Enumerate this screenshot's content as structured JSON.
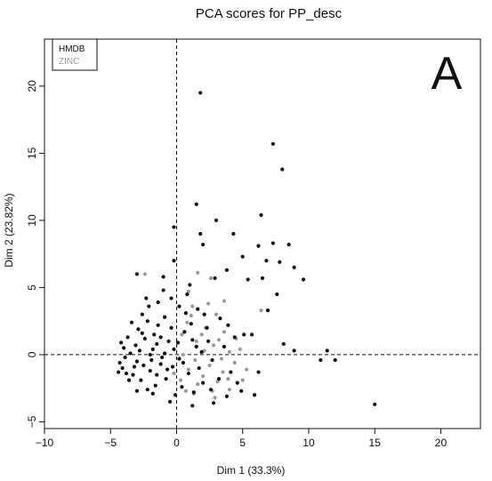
{
  "chart_data": {
    "type": "scatter",
    "title": "PCA scores for PP_desc",
    "xlabel": "Dim 1 (33.3%)",
    "ylabel": "Dim 2 (23.82%)",
    "panel_label": "A",
    "xlim": [
      -10,
      23
    ],
    "ylim": [
      -5.5,
      23.5
    ],
    "xticks": [
      -10,
      -5,
      0,
      5,
      10,
      15,
      20
    ],
    "yticks": [
      -5,
      0,
      5,
      10,
      15,
      20
    ],
    "xtick_labels": [
      "−10",
      "−5",
      "0",
      "5",
      "10",
      "15",
      "20"
    ],
    "ytick_labels": [
      "−5",
      "0",
      "5",
      "10",
      "15",
      "20"
    ],
    "reference_lines": {
      "x": 0,
      "y": 0,
      "style": "dashed"
    },
    "legend_position": "top-left",
    "colors": {
      "HMDB": "#111111",
      "ZINC": "#9a9a9a"
    },
    "series": [
      {
        "name": "HMDB",
        "color": "#111111",
        "points": [
          [
            1.8,
            19.5
          ],
          [
            7.3,
            15.7
          ],
          [
            8.0,
            13.8
          ],
          [
            1.5,
            11.2
          ],
          [
            3.0,
            10.0
          ],
          [
            6.4,
            10.4
          ],
          [
            -0.2,
            9.5
          ],
          [
            1.8,
            9.0
          ],
          [
            4.3,
            9.0
          ],
          [
            2.0,
            8.2
          ],
          [
            6.2,
            8.1
          ],
          [
            7.3,
            8.3
          ],
          [
            8.5,
            8.2
          ],
          [
            6.8,
            7.0
          ],
          [
            7.8,
            6.9
          ],
          [
            -3.0,
            6.0
          ],
          [
            8.9,
            6.5
          ],
          [
            -0.2,
            7.0
          ],
          [
            3.8,
            6.3
          ],
          [
            9.6,
            5.6
          ],
          [
            5.4,
            5.6
          ],
          [
            6.5,
            5.7
          ],
          [
            5.0,
            7.3
          ],
          [
            7.6,
            4.5
          ],
          [
            -1.0,
            5.8
          ],
          [
            2.9,
            5.7
          ],
          [
            1.0,
            5.2
          ],
          [
            6.9,
            3.3
          ],
          [
            5.1,
            1.5
          ],
          [
            5.7,
            1.5
          ],
          [
            8.1,
            0.8
          ],
          [
            8.9,
            0.3
          ],
          [
            11.4,
            0.3
          ],
          [
            10.9,
            -0.4
          ],
          [
            12.0,
            -0.4
          ],
          [
            15.0,
            -3.7
          ],
          [
            6.2,
            -1.3
          ],
          [
            2.1,
            3.0
          ],
          [
            3.3,
            2.7
          ],
          [
            -2.1,
            3.6
          ],
          [
            -1.4,
            3.9
          ],
          [
            0.8,
            4.5
          ],
          [
            -0.4,
            4.2
          ],
          [
            1.2,
            -3.8
          ],
          [
            -0.5,
            -3.5
          ],
          [
            5.9,
            -3.0
          ],
          [
            4.9,
            -2.7
          ],
          [
            2.8,
            -3.6
          ],
          [
            -4.0,
            0.5
          ],
          [
            -3.5,
            0.1
          ],
          [
            -3.0,
            -0.5
          ],
          [
            -2.4,
            1.2
          ],
          [
            -1.8,
            0.4
          ],
          [
            -1.2,
            -0.7
          ],
          [
            -0.6,
            1.0
          ],
          [
            0.2,
            -0.3
          ],
          [
            -4.1,
            -1.0
          ],
          [
            -3.3,
            -1.5
          ],
          [
            -2.7,
            -1.9
          ],
          [
            -2.0,
            -1.2
          ],
          [
            -1.4,
            2.2
          ],
          [
            -0.8,
            -1.8
          ],
          [
            0.6,
            1.7
          ],
          [
            -3.7,
            1.3
          ],
          [
            -2.9,
            1.9
          ],
          [
            -2.2,
            2.5
          ],
          [
            -1.6,
            -2.3
          ],
          [
            -0.9,
            0.1
          ],
          [
            0.9,
            -1.4
          ],
          [
            1.5,
            0.6
          ],
          [
            2.0,
            -2.1
          ],
          [
            -3.9,
            -0.2
          ],
          [
            -3.1,
            0.7
          ],
          [
            -2.5,
            -0.8
          ],
          [
            -1.7,
            1.5
          ],
          [
            -1.1,
            -0.2
          ],
          [
            -0.4,
            2.0
          ],
          [
            0.4,
            -2.4
          ],
          [
            1.1,
            2.3
          ],
          [
            2.4,
            1.0
          ],
          [
            -4.3,
            -0.6
          ],
          [
            -3.6,
            -1.9
          ],
          [
            -2.8,
            0.3
          ],
          [
            -2.2,
            -2.6
          ],
          [
            -1.5,
            0.8
          ],
          [
            -0.7,
            -1.1
          ],
          [
            0.1,
            0.9
          ],
          [
            1.7,
            -1.0
          ],
          [
            2.7,
            -0.4
          ],
          [
            3.2,
            -1.8
          ],
          [
            -3.4,
            2.4
          ],
          [
            -2.6,
            3.0
          ],
          [
            -1.9,
            -0.4
          ],
          [
            -1.2,
            1.3
          ],
          [
            -0.3,
            -0.9
          ],
          [
            0.7,
            3.1
          ],
          [
            1.3,
            -2.8
          ],
          [
            2.3,
            2.0
          ],
          [
            -4.2,
            0.9
          ],
          [
            -3.8,
            -1.4
          ],
          [
            -3.2,
            -0.9
          ],
          [
            -2.6,
            1.6
          ],
          [
            -2.0,
            0.0
          ],
          [
            -1.5,
            -1.5
          ],
          [
            -0.9,
            2.8
          ],
          [
            -0.2,
            0.4
          ],
          [
            0.5,
            -0.6
          ],
          [
            1.2,
            1.1
          ],
          [
            1.9,
            0.2
          ],
          [
            2.6,
            -2.6
          ],
          [
            3.6,
            0.6
          ],
          [
            4.1,
            -1.3
          ],
          [
            4.6,
            -2.1
          ],
          [
            -1.0,
            4.8
          ],
          [
            -2.3,
            4.2
          ],
          [
            0.2,
            3.6
          ],
          [
            1.6,
            3.4
          ],
          [
            3.9,
            2.2
          ],
          [
            -3.0,
            -2.7
          ],
          [
            -4.4,
            -1.3
          ],
          [
            -1.8,
            -2.9
          ],
          [
            -0.1,
            -3.0
          ],
          [
            3.8,
            -3.1
          ],
          [
            4.4,
            1.3
          ]
        ]
      },
      {
        "name": "ZINC",
        "color": "#9a9a9a",
        "points": [
          [
            -2.4,
            6.0
          ],
          [
            1.6,
            6.1
          ],
          [
            2.6,
            5.7
          ],
          [
            0.9,
            4.7
          ],
          [
            3.6,
            4.0
          ],
          [
            6.4,
            3.3
          ],
          [
            1.2,
            3.6
          ],
          [
            3.0,
            3.0
          ],
          [
            0.8,
            2.4
          ],
          [
            2.2,
            2.0
          ],
          [
            3.6,
            1.7
          ],
          [
            4.5,
            1.2
          ],
          [
            0.4,
            1.5
          ],
          [
            1.5,
            1.0
          ],
          [
            2.8,
            0.7
          ],
          [
            4.0,
            0.2
          ],
          [
            0.5,
            0.0
          ],
          [
            1.4,
            -0.4
          ],
          [
            2.5,
            -0.8
          ],
          [
            3.5,
            -1.3
          ],
          [
            4.4,
            -0.6
          ],
          [
            0.9,
            -1.1
          ],
          [
            2.0,
            -1.6
          ],
          [
            3.1,
            -2.0
          ],
          [
            4.0,
            -2.6
          ],
          [
            1.6,
            -2.2
          ],
          [
            2.7,
            -2.7
          ],
          [
            3.4,
            -0.3
          ],
          [
            0.3,
            -1.9
          ],
          [
            1.1,
            2.9
          ],
          [
            2.4,
            3.8
          ],
          [
            5.0,
            -1.9
          ],
          [
            3.9,
            -1.8
          ],
          [
            2.1,
            0.3
          ],
          [
            0.7,
            -2.7
          ],
          [
            1.9,
            1.5
          ],
          [
            3.2,
            1.1
          ],
          [
            4.8,
            0.4
          ],
          [
            5.3,
            -1.1
          ],
          [
            2.9,
            -3.2
          ],
          [
            1.3,
            -2.9
          ],
          [
            -0.2,
            -1.4
          ]
        ]
      }
    ]
  }
}
